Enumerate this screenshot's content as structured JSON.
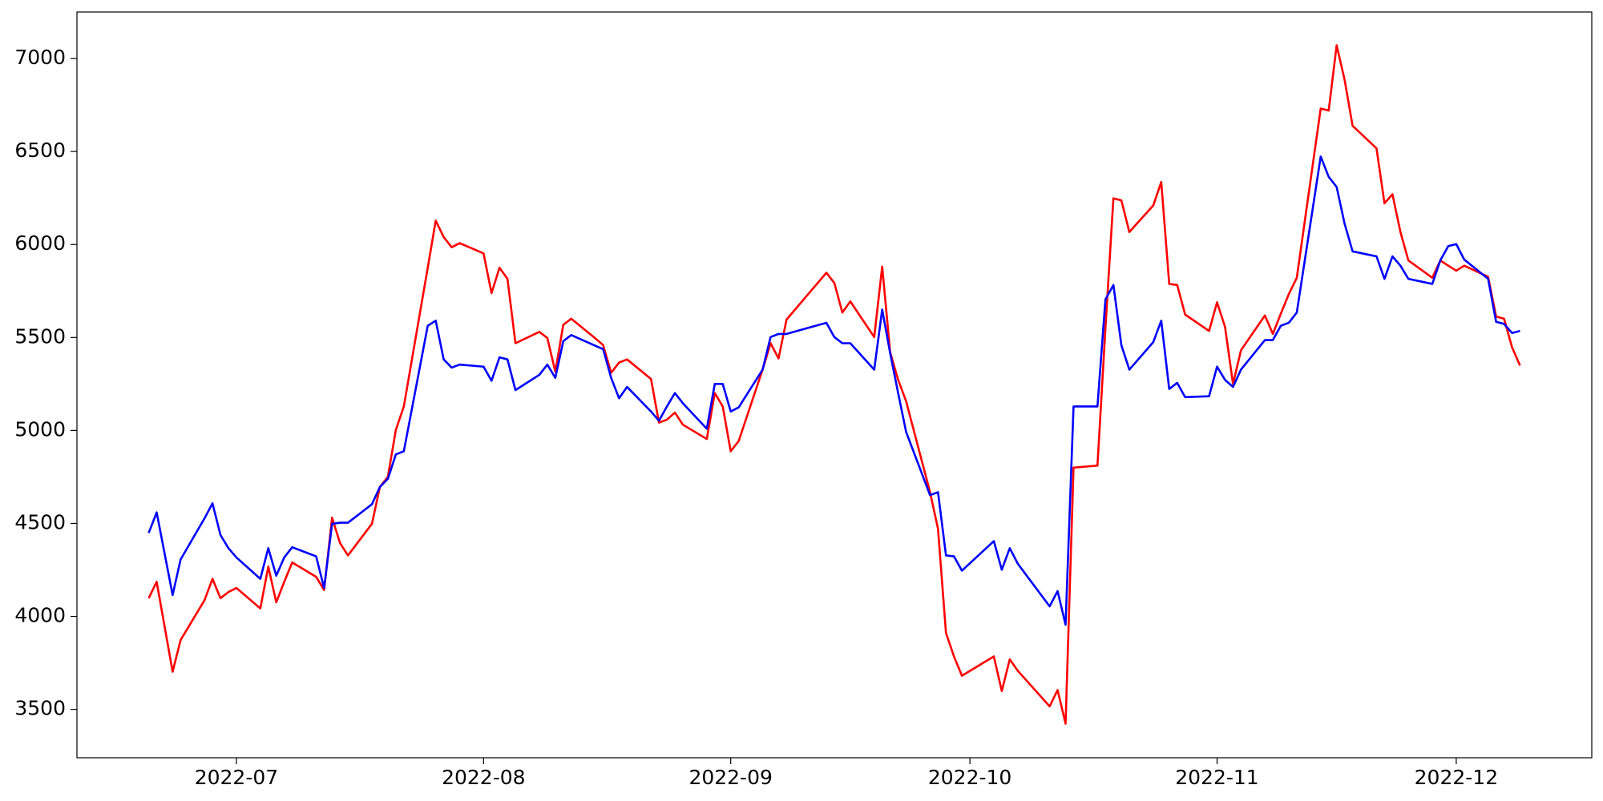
{
  "chart_data": {
    "type": "line",
    "x": [
      "2022-06-20",
      "2022-06-21",
      "2022-06-23",
      "2022-06-24",
      "2022-06-27",
      "2022-06-28",
      "2022-06-29",
      "2022-06-30",
      "2022-07-01",
      "2022-07-04",
      "2022-07-05",
      "2022-07-06",
      "2022-07-07",
      "2022-07-08",
      "2022-07-11",
      "2022-07-12",
      "2022-07-13",
      "2022-07-14",
      "2022-07-15",
      "2022-07-18",
      "2022-07-19",
      "2022-07-20",
      "2022-07-21",
      "2022-07-22",
      "2022-07-25",
      "2022-07-26",
      "2022-07-27",
      "2022-07-28",
      "2022-07-29",
      "2022-08-01",
      "2022-08-02",
      "2022-08-03",
      "2022-08-04",
      "2022-08-05",
      "2022-08-08",
      "2022-08-09",
      "2022-08-10",
      "2022-08-11",
      "2022-08-12",
      "2022-08-15",
      "2022-08-16",
      "2022-08-17",
      "2022-08-18",
      "2022-08-19",
      "2022-08-22",
      "2022-08-23",
      "2022-08-24",
      "2022-08-25",
      "2022-08-26",
      "2022-08-29",
      "2022-08-30",
      "2022-08-31",
      "2022-09-01",
      "2022-09-02",
      "2022-09-05",
      "2022-09-06",
      "2022-09-07",
      "2022-09-08",
      "2022-09-13",
      "2022-09-14",
      "2022-09-15",
      "2022-09-16",
      "2022-09-19",
      "2022-09-20",
      "2022-09-21",
      "2022-09-22",
      "2022-09-23",
      "2022-09-26",
      "2022-09-27",
      "2022-09-28",
      "2022-09-29",
      "2022-09-30",
      "2022-10-04",
      "2022-10-05",
      "2022-10-06",
      "2022-10-07",
      "2022-10-11",
      "2022-10-12",
      "2022-10-13",
      "2022-10-14",
      "2022-10-17",
      "2022-10-18",
      "2022-10-19",
      "2022-10-20",
      "2022-10-21",
      "2022-10-24",
      "2022-10-25",
      "2022-10-26",
      "2022-10-27",
      "2022-10-28",
      "2022-10-31",
      "2022-11-01",
      "2022-11-02",
      "2022-11-03",
      "2022-11-04",
      "2022-11-07",
      "2022-11-08",
      "2022-11-09",
      "2022-11-10",
      "2022-11-11",
      "2022-11-14",
      "2022-11-15",
      "2022-11-16",
      "2022-11-17",
      "2022-11-18",
      "2022-11-21",
      "2022-11-22",
      "2022-11-23",
      "2022-11-24",
      "2022-11-25",
      "2022-11-28",
      "2022-11-29",
      "2022-11-30",
      "2022-12-01",
      "2022-12-02",
      "2022-12-05",
      "2022-12-06",
      "2022-12-07",
      "2022-12-08",
      "2022-12-09"
    ],
    "series": [
      {
        "color": "#ff0000",
        "values": [
          4098,
          4186,
          3703,
          3873,
          4087,
          4202,
          4098,
          4131,
          4153,
          4043,
          4268,
          4076,
          4186,
          4290,
          4213,
          4142,
          4531,
          4394,
          4328,
          4498,
          4696,
          4751,
          5003,
          5129,
          5875,
          6128,
          6040,
          5985,
          6007,
          5952,
          5738,
          5875,
          5815,
          5469,
          5530,
          5497,
          5316,
          5568,
          5601,
          5496,
          5459,
          5310,
          5365,
          5382,
          5277,
          5042,
          5058,
          5096,
          5031,
          4954,
          5201,
          5129,
          4888,
          4943,
          5327,
          5469,
          5387,
          5596,
          5848,
          5793,
          5634,
          5694,
          5502,
          5881,
          5420,
          5272,
          5157,
          4668,
          4471,
          3911,
          3785,
          3681,
          3785,
          3599,
          3769,
          3708,
          3516,
          3604,
          3423,
          4800,
          4811,
          5550,
          6248,
          6237,
          6067,
          6210,
          6336,
          5788,
          5782,
          5623,
          5535,
          5689,
          5557,
          5250,
          5431,
          5618,
          5519,
          5628,
          5733,
          5821,
          6731,
          6720,
          7071,
          6885,
          6638,
          6517,
          6221,
          6270,
          6067,
          5914,
          5821,
          5914,
          5886,
          5859,
          5886,
          5826,
          5612,
          5601,
          5447,
          5349
        ]
      },
      {
        "color": "#0000ff",
        "values": [
          4449,
          4559,
          4115,
          4306,
          4527,
          4608,
          4438,
          4367,
          4317,
          4202,
          4367,
          4219,
          4317,
          4372,
          4323,
          4153,
          4498,
          4504,
          4504,
          4603,
          4696,
          4740,
          4871,
          4888,
          5563,
          5590,
          5382,
          5338,
          5354,
          5343,
          5267,
          5393,
          5382,
          5217,
          5299,
          5354,
          5283,
          5480,
          5513,
          5456,
          5437,
          5283,
          5173,
          5234,
          5102,
          5052,
          5129,
          5201,
          5146,
          5009,
          5250,
          5250,
          5102,
          5124,
          5327,
          5502,
          5519,
          5519,
          5579,
          5502,
          5469,
          5469,
          5327,
          5650,
          5415,
          5201,
          4992,
          4652,
          4668,
          4328,
          4323,
          4246,
          4405,
          4251,
          4367,
          4284,
          4054,
          4136,
          3955,
          5129,
          5129,
          5705,
          5782,
          5458,
          5327,
          5475,
          5590,
          5223,
          5256,
          5179,
          5184,
          5343,
          5272,
          5234,
          5327,
          5486,
          5486,
          5563,
          5579,
          5634,
          6473,
          6364,
          6309,
          6111,
          5963,
          5936,
          5815,
          5936,
          5886,
          5815,
          5788,
          5914,
          5991,
          6002,
          5919,
          5815,
          5584,
          5573,
          5524,
          5535
        ]
      }
    ],
    "xlim": [
      "2022-06-11",
      "2022-12-18"
    ],
    "xticks": [
      {
        "value": "2022-07-01",
        "label": "2022-07"
      },
      {
        "value": "2022-08-01",
        "label": "2022-08"
      },
      {
        "value": "2022-09-01",
        "label": "2022-09"
      },
      {
        "value": "2022-10-01",
        "label": "2022-10"
      },
      {
        "value": "2022-11-01",
        "label": "2022-11"
      },
      {
        "value": "2022-12-01",
        "label": "2022-12"
      }
    ],
    "ylim": [
      3240,
      7250
    ],
    "yticks": [
      3500,
      4000,
      4500,
      5000,
      5500,
      6000,
      6500,
      7000
    ]
  }
}
